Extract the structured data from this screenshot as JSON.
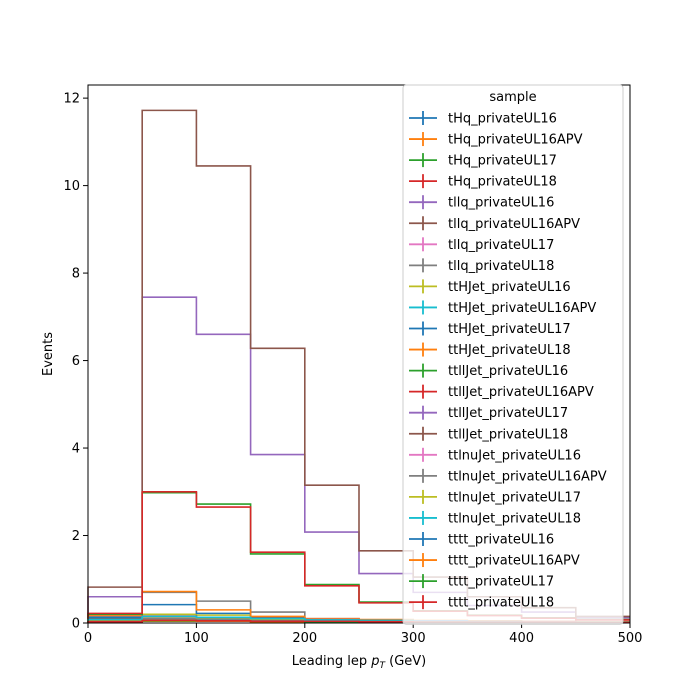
{
  "chart_data": {
    "type": "histogram-step",
    "xlabel_main": "Leading lep ",
    "xlabel_p": "p",
    "xlabel_sub": "T",
    "xlabel_unit": " (GeV)",
    "ylabel": "Events",
    "xlim": [
      0,
      500
    ],
    "ylim": [
      0,
      12.3
    ],
    "xticks": [
      0,
      100,
      200,
      300,
      400,
      500
    ],
    "yticks": [
      0,
      2,
      4,
      6,
      8,
      10,
      12
    ],
    "bin_edges": [
      0,
      50,
      100,
      150,
      200,
      250,
      300,
      350,
      400,
      450,
      500
    ],
    "legend_title": "sample",
    "legend_location": "upper-right",
    "series": [
      {
        "name": "tHq_privateUL16",
        "color": "#1f77b4",
        "values": [
          0.05,
          0.08,
          0.07,
          0.05,
          0.04,
          0.03,
          0.02,
          0.02,
          0.01,
          0.01
        ]
      },
      {
        "name": "tHq_privateUL16APV",
        "color": "#ff7f0e",
        "values": [
          0.04,
          0.07,
          0.06,
          0.05,
          0.03,
          0.02,
          0.02,
          0.01,
          0.01,
          0.01
        ]
      },
      {
        "name": "tHq_privateUL17",
        "color": "#2ca02c",
        "values": [
          0.06,
          0.1,
          0.09,
          0.06,
          0.05,
          0.03,
          0.02,
          0.02,
          0.01,
          0.01
        ]
      },
      {
        "name": "tHq_privateUL18",
        "color": "#d62728",
        "values": [
          0.07,
          0.12,
          0.1,
          0.07,
          0.05,
          0.04,
          0.03,
          0.02,
          0.02,
          0.01
        ]
      },
      {
        "name": "tllq_privateUL16",
        "color": "#9467bd",
        "values": [
          0.6,
          7.45,
          6.6,
          3.85,
          2.08,
          1.13,
          0.7,
          0.4,
          0.25,
          0.12
        ]
      },
      {
        "name": "tllq_privateUL16APV",
        "color": "#8c564b",
        "values": [
          0.82,
          11.72,
          10.45,
          6.28,
          3.15,
          1.65,
          1.05,
          0.6,
          0.35,
          0.15
        ]
      },
      {
        "name": "tllq_privateUL17",
        "color": "#e377c2",
        "values": [
          0.1,
          0.12,
          0.1,
          0.08,
          0.06,
          0.05,
          0.04,
          0.03,
          0.02,
          0.02
        ]
      },
      {
        "name": "tllq_privateUL18",
        "color": "#7f7f7f",
        "values": [
          0.15,
          0.7,
          0.5,
          0.25,
          0.1,
          0.05,
          0.04,
          0.03,
          0.02,
          0.02
        ]
      },
      {
        "name": "ttHJet_privateUL16",
        "color": "#bcbd22",
        "values": [
          0.1,
          0.2,
          0.18,
          0.12,
          0.08,
          0.06,
          0.04,
          0.03,
          0.02,
          0.02
        ]
      },
      {
        "name": "ttHJet_privateUL16APV",
        "color": "#17becf",
        "values": [
          0.05,
          0.1,
          0.09,
          0.07,
          0.05,
          0.04,
          0.03,
          0.02,
          0.02,
          0.01
        ]
      },
      {
        "name": "ttHJet_privateUL17",
        "color": "#1f77b4",
        "values": [
          0.12,
          0.42,
          0.22,
          0.12,
          0.08,
          0.06,
          0.05,
          0.04,
          0.03,
          0.02
        ]
      },
      {
        "name": "ttHJet_privateUL18",
        "color": "#ff7f0e",
        "values": [
          0.18,
          0.72,
          0.3,
          0.15,
          0.1,
          0.08,
          0.06,
          0.05,
          0.04,
          0.03
        ]
      },
      {
        "name": "ttllJet_privateUL16",
        "color": "#2ca02c",
        "values": [
          0.2,
          2.98,
          2.72,
          1.58,
          0.88,
          0.48,
          0.28,
          0.18,
          0.12,
          0.08
        ]
      },
      {
        "name": "ttllJet_privateUL16APV",
        "color": "#d62728",
        "values": [
          0.22,
          3.0,
          2.65,
          1.62,
          0.85,
          0.46,
          0.27,
          0.17,
          0.11,
          0.07
        ]
      },
      {
        "name": "ttllJet_privateUL17",
        "color": "#9467bd",
        "values": [
          0.08,
          0.15,
          0.12,
          0.1,
          0.08,
          0.06,
          0.05,
          0.04,
          0.03,
          0.02
        ]
      },
      {
        "name": "ttllJet_privateUL18",
        "color": "#8c564b",
        "values": [
          0.09,
          0.16,
          0.13,
          0.1,
          0.07,
          0.05,
          0.04,
          0.03,
          0.03,
          0.02
        ]
      },
      {
        "name": "ttlnuJet_privateUL16",
        "color": "#e377c2",
        "values": [
          0.06,
          0.12,
          0.1,
          0.08,
          0.06,
          0.05,
          0.04,
          0.03,
          0.02,
          0.02
        ]
      },
      {
        "name": "ttlnuJet_privateUL16APV",
        "color": "#7f7f7f",
        "values": [
          0.05,
          0.1,
          0.09,
          0.07,
          0.05,
          0.04,
          0.03,
          0.02,
          0.02,
          0.01
        ]
      },
      {
        "name": "ttlnuJet_privateUL17",
        "color": "#bcbd22",
        "values": [
          0.07,
          0.14,
          0.12,
          0.09,
          0.06,
          0.05,
          0.04,
          0.03,
          0.02,
          0.02
        ]
      },
      {
        "name": "ttlnuJet_privateUL18",
        "color": "#17becf",
        "values": [
          0.08,
          0.15,
          0.13,
          0.1,
          0.07,
          0.06,
          0.04,
          0.03,
          0.02,
          0.02
        ]
      },
      {
        "name": "tttt_privateUL16",
        "color": "#1f77b4",
        "values": [
          0.02,
          0.04,
          0.04,
          0.03,
          0.03,
          0.02,
          0.02,
          0.02,
          0.01,
          0.01
        ]
      },
      {
        "name": "tttt_privateUL16APV",
        "color": "#ff7f0e",
        "values": [
          0.02,
          0.04,
          0.04,
          0.03,
          0.03,
          0.02,
          0.02,
          0.01,
          0.01,
          0.01
        ]
      },
      {
        "name": "tttt_privateUL17",
        "color": "#2ca02c",
        "values": [
          0.03,
          0.05,
          0.05,
          0.04,
          0.03,
          0.03,
          0.02,
          0.02,
          0.01,
          0.01
        ]
      },
      {
        "name": "tttt_privateUL18",
        "color": "#d62728",
        "values": [
          0.03,
          0.06,
          0.05,
          0.04,
          0.04,
          0.03,
          0.02,
          0.02,
          0.02,
          0.01
        ]
      }
    ]
  }
}
